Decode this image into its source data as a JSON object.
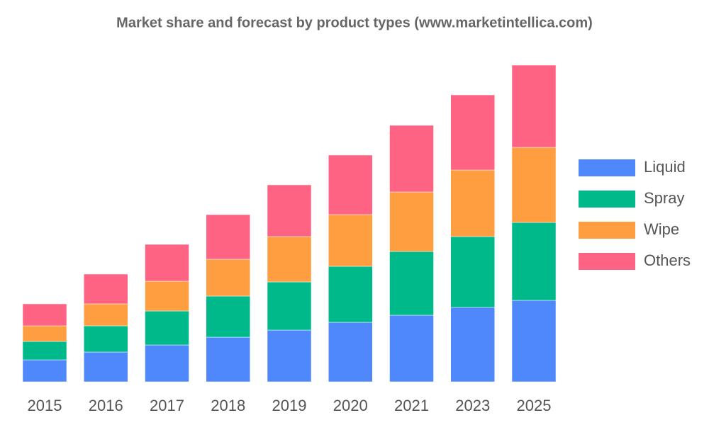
{
  "chart_data": {
    "type": "bar",
    "stacked": true,
    "title": "Market share and forecast by product types (www.marketintellica.com)",
    "categories": [
      "2015",
      "2016",
      "2017",
      "2018",
      "2019",
      "2020",
      "2021",
      "2023",
      "2025"
    ],
    "series": [
      {
        "name": "Liquid",
        "color": "#4f88fb",
        "values": [
          31,
          42,
          52,
          63,
          73,
          84,
          94,
          105,
          115
        ]
      },
      {
        "name": "Spray",
        "color": "#00b98a",
        "values": [
          26,
          37,
          48,
          58,
          68,
          79,
          90,
          100,
          110
        ]
      },
      {
        "name": "Wipe",
        "color": "#ff9e40",
        "values": [
          22,
          31,
          42,
          52,
          64,
          73,
          84,
          94,
          106
        ]
      },
      {
        "name": "Others",
        "color": "#ff6384",
        "values": [
          31,
          42,
          52,
          63,
          73,
          84,
          94,
          106,
          116
        ]
      }
    ],
    "legend": "right"
  }
}
